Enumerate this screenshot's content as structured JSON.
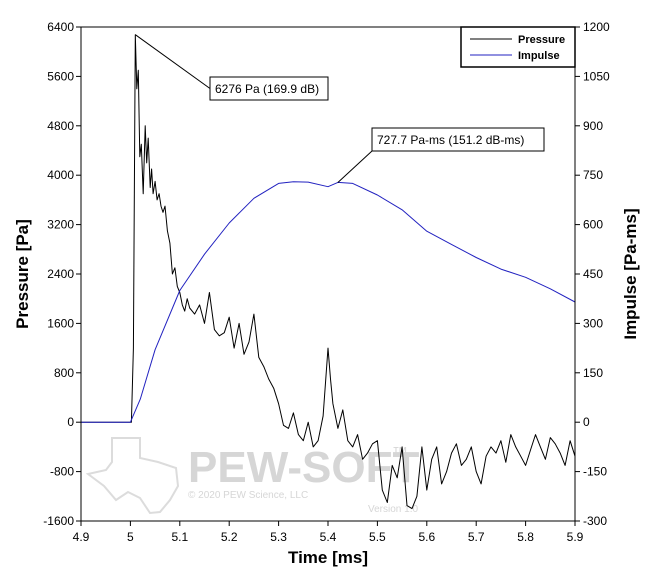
{
  "chart_data": {
    "type": "line",
    "xlabel": "Time [ms]",
    "ylabel": "Pressure [Pa]",
    "y2label": "Impulse [Pa-ms]",
    "xlim": [
      4.9,
      5.9
    ],
    "ylim": [
      -1600,
      6400
    ],
    "y2lim": [
      -300,
      1200
    ],
    "xticks": [
      "4.9",
      "5",
      "5.1",
      "5.2",
      "5.3",
      "5.4",
      "5.5",
      "5.6",
      "5.7",
      "5.8",
      "5.9"
    ],
    "yticks": [
      "-1600",
      "-800",
      "0",
      "800",
      "1600",
      "2400",
      "3200",
      "4000",
      "4800",
      "5600",
      "6400"
    ],
    "y2ticks": [
      "-300",
      "-150",
      "0",
      "150",
      "300",
      "450",
      "600",
      "750",
      "900",
      "1050",
      "1200"
    ],
    "legend": {
      "position": "top-right",
      "entries": [
        "Pressure",
        "Impulse"
      ]
    },
    "series": [
      {
        "name": "Pressure",
        "axis": "left",
        "color": "#000000",
        "x": [
          4.9,
          5.002,
          5.006,
          5.01,
          5.013,
          5.016,
          5.019,
          5.022,
          5.026,
          5.03,
          5.033,
          5.036,
          5.04,
          5.043,
          5.046,
          5.05,
          5.054,
          5.058,
          5.062,
          5.066,
          5.07,
          5.075,
          5.08,
          5.085,
          5.09,
          5.095,
          5.1,
          5.105,
          5.11,
          5.115,
          5.12,
          5.13,
          5.14,
          5.15,
          5.16,
          5.17,
          5.18,
          5.19,
          5.2,
          5.21,
          5.22,
          5.23,
          5.24,
          5.25,
          5.26,
          5.27,
          5.28,
          5.29,
          5.3,
          5.31,
          5.32,
          5.33,
          5.34,
          5.35,
          5.36,
          5.37,
          5.38,
          5.39,
          5.4,
          5.405,
          5.41,
          5.42,
          5.43,
          5.44,
          5.45,
          5.46,
          5.47,
          5.48,
          5.49,
          5.5,
          5.51,
          5.52,
          5.53,
          5.54,
          5.55,
          5.56,
          5.57,
          5.58,
          5.59,
          5.6,
          5.61,
          5.62,
          5.63,
          5.64,
          5.65,
          5.66,
          5.67,
          5.68,
          5.69,
          5.7,
          5.71,
          5.72,
          5.73,
          5.74,
          5.75,
          5.76,
          5.77,
          5.78,
          5.79,
          5.8,
          5.81,
          5.82,
          5.83,
          5.84,
          5.85,
          5.86,
          5.87,
          5.88,
          5.89,
          5.9
        ],
        "values": [
          0,
          0,
          1200,
          6276,
          5400,
          5700,
          4300,
          4500,
          3700,
          4800,
          4200,
          4600,
          3800,
          4100,
          3700,
          3900,
          3600,
          3700,
          3500,
          3400,
          3500,
          3100,
          2900,
          2400,
          2500,
          2200,
          2100,
          1900,
          1800,
          2000,
          1850,
          1750,
          1900,
          1600,
          2100,
          1500,
          1400,
          1450,
          1700,
          1200,
          1600,
          1100,
          1300,
          1750,
          1050,
          900,
          700,
          550,
          300,
          -50,
          -100,
          150,
          -200,
          -300,
          0,
          -400,
          -300,
          100,
          1200,
          700,
          300,
          -100,
          200,
          -300,
          -400,
          -200,
          -600,
          -500,
          -350,
          -300,
          -1100,
          -1300,
          -700,
          -900,
          -400,
          -1350,
          -1400,
          -1200,
          -400,
          -1100,
          -600,
          -400,
          -1000,
          -800,
          -500,
          -350,
          -700,
          -600,
          -400,
          -800,
          -1000,
          -550,
          -400,
          -500,
          -300,
          -650,
          -200,
          -400,
          -550,
          -700,
          -450,
          -200,
          -400,
          -600,
          -250,
          -350,
          -500,
          -700,
          -300,
          -550
        ],
        "annotation": "6276 Pa (169.9 dB)",
        "annotation_at": [
          5.01,
          6276
        ]
      },
      {
        "name": "Impulse",
        "axis": "right",
        "color": "#2222c0",
        "x": [
          4.9,
          5.0,
          5.02,
          5.05,
          5.1,
          5.15,
          5.2,
          5.25,
          5.3,
          5.33,
          5.36,
          5.4,
          5.42,
          5.45,
          5.5,
          5.55,
          5.6,
          5.65,
          5.7,
          5.75,
          5.8,
          5.85,
          5.9
        ],
        "values": [
          0,
          0,
          70,
          220,
          400,
          510,
          605,
          680,
          725,
          730,
          729,
          715,
          728,
          725,
          690,
          645,
          580,
          540,
          500,
          465,
          440,
          405,
          365
        ],
        "annotation": "727.7 Pa-ms (151.2 dB-ms)",
        "annotation_at": [
          5.42,
          728
        ]
      }
    ]
  },
  "watermark": {
    "brand": "PEW-SOFT",
    "trademark": "™",
    "copyright": "© 2020 PEW Science, LLC",
    "version": "Version 1.0"
  }
}
